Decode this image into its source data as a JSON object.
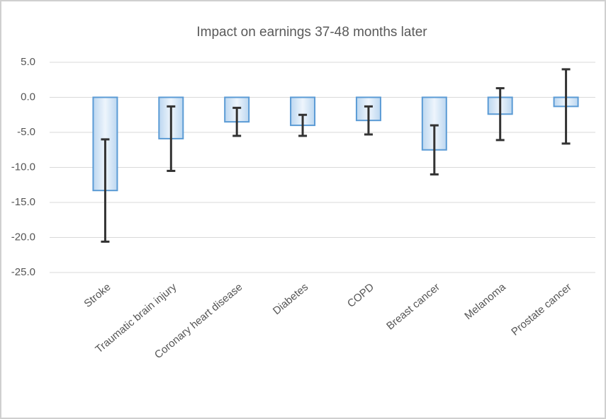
{
  "chart_data": {
    "type": "bar",
    "title": "Impact on earnings 37-48 months later",
    "categories": [
      "Stroke",
      "Traumatic brain injury",
      "Coronary heart disease",
      "Diabetes",
      "COPD",
      "Breast cancer",
      "Melanoma",
      "Prostate cancer"
    ],
    "values": [
      -13.3,
      -5.9,
      -3.5,
      -4.0,
      -3.3,
      -7.5,
      -2.4,
      -1.3
    ],
    "errors": [
      7.3,
      4.6,
      2.0,
      1.5,
      2.0,
      3.5,
      3.7,
      5.3
    ],
    "color": "#5b9bd5",
    "ylim": [
      -25,
      5
    ],
    "yticks": [
      {
        "value": 5,
        "label": "5.0"
      },
      {
        "value": 0,
        "label": "0.0"
      },
      {
        "value": -5,
        "label": "-5.0"
      },
      {
        "value": -10,
        "label": "-10.0"
      },
      {
        "value": -15,
        "label": "-15.0"
      },
      {
        "value": -20,
        "label": "-20.0"
      },
      {
        "value": -25,
        "label": "-25.0"
      }
    ],
    "grid": true
  }
}
